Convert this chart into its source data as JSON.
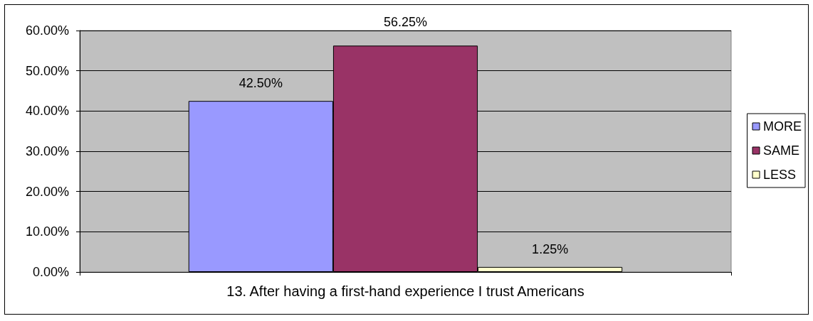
{
  "chart_data": {
    "type": "bar",
    "categories": [
      "13. After having a first-hand experience I trust Americans"
    ],
    "series": [
      {
        "name": "MORE",
        "color": "#9999ff",
        "values": [
          42.5
        ],
        "value_labels": [
          "42.50%"
        ]
      },
      {
        "name": "SAME",
        "color": "#993366",
        "values": [
          56.25
        ],
        "value_labels": [
          "56.25%"
        ]
      },
      {
        "name": "LESS",
        "color": "#ffffcc",
        "values": [
          1.25
        ],
        "value_labels": [
          "1.25%"
        ]
      }
    ],
    "ylim": [
      0,
      60
    ],
    "yticks": [
      {
        "value": 0,
        "label": "0.00%"
      },
      {
        "value": 10,
        "label": "10.00%"
      },
      {
        "value": 20,
        "label": "20.00%"
      },
      {
        "value": 30,
        "label": "30.00%"
      },
      {
        "value": 40,
        "label": "40.00%"
      },
      {
        "value": 50,
        "label": "50.00%"
      },
      {
        "value": 60,
        "label": "60.00%"
      }
    ],
    "grid": "y",
    "legend": "right"
  }
}
